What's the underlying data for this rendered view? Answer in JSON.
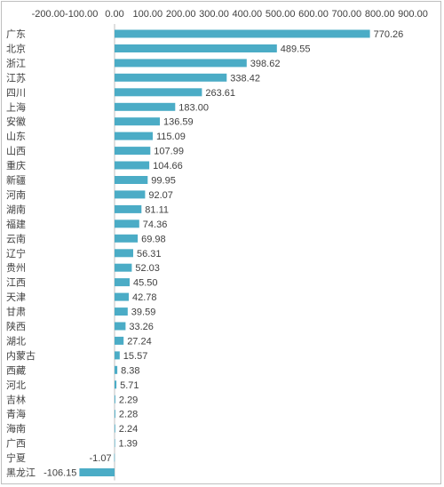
{
  "chart_data": {
    "type": "bar",
    "orientation": "horizontal",
    "title": "",
    "xlabel": "",
    "ylabel": "",
    "xlim": [
      -200,
      900
    ],
    "x_ticks": [
      -200,
      -100,
      0,
      100,
      200,
      300,
      400,
      500,
      600,
      700,
      800,
      900
    ],
    "x_tick_labels": [
      "-200.00",
      "-100.00",
      "0.00",
      "100.00",
      "200.00",
      "300.00",
      "400.00",
      "500.00",
      "600.00",
      "700.00",
      "800.00",
      "900.00"
    ],
    "x_axis_position": "top",
    "grid": false,
    "legend": "none",
    "bar_color": "#4bacc6",
    "categories": [
      "广东",
      "北京",
      "浙江",
      "江苏",
      "四川",
      "上海",
      "安徽",
      "山东",
      "山西",
      "重庆",
      "新疆",
      "河南",
      "湖南",
      "福建",
      "云南",
      "辽宁",
      "贵州",
      "江西",
      "天津",
      "甘肃",
      "陕西",
      "湖北",
      "内蒙古",
      "西藏",
      "河北",
      "吉林",
      "青海",
      "海南",
      "广西",
      "宁夏",
      "黑龙江"
    ],
    "values": [
      770.26,
      489.55,
      398.62,
      338.42,
      263.61,
      183.0,
      136.59,
      115.09,
      107.99,
      104.66,
      99.95,
      92.07,
      81.11,
      74.36,
      69.98,
      56.31,
      52.03,
      45.5,
      42.78,
      39.59,
      33.26,
      27.24,
      15.57,
      8.38,
      5.71,
      2.29,
      2.28,
      2.24,
      1.39,
      -1.07,
      -106.15
    ],
    "value_labels": [
      "770.26",
      "489.55",
      "398.62",
      "338.42",
      "263.61",
      "183.00",
      "136.59",
      "115.09",
      "107.99",
      "104.66",
      "99.95",
      "92.07",
      "81.11",
      "74.36",
      "69.98",
      "56.31",
      "52.03",
      "45.50",
      "42.78",
      "39.59",
      "33.26",
      "27.24",
      "15.57",
      "8.38",
      "5.71",
      "2.29",
      "2.28",
      "2.24",
      "1.39",
      "-1.07",
      "-106.15"
    ]
  }
}
